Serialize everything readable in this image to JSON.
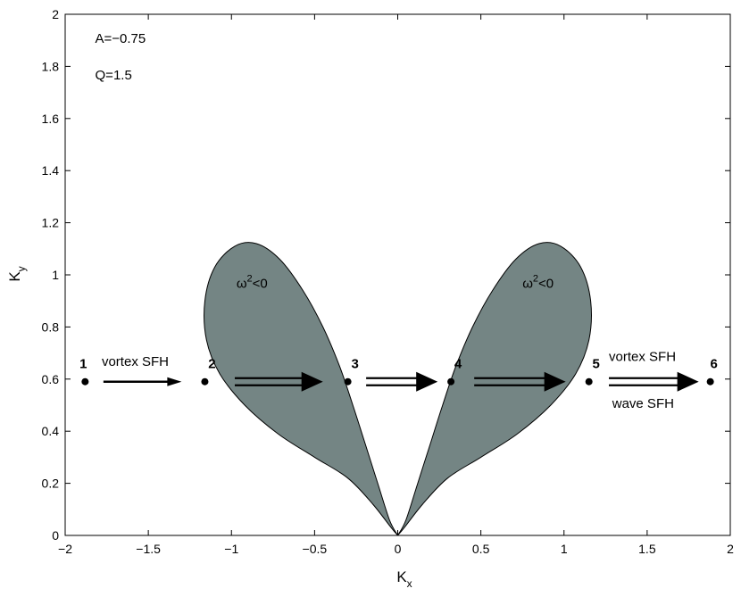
{
  "chart_data": {
    "type": "area",
    "title": "",
    "xlabel": "K",
    "xlabel_sub": "x",
    "ylabel": "K",
    "ylabel_sub": "y",
    "xlim": [
      -2,
      2
    ],
    "ylim": [
      0,
      2
    ],
    "xticks": [
      -2,
      -1.5,
      -1,
      -0.5,
      0,
      0.5,
      1,
      1.5,
      2
    ],
    "xtick_labels": [
      "−2",
      "−1.5",
      "−1",
      "−0.5",
      "0",
      "0.5",
      "1",
      "1.5",
      "2"
    ],
    "yticks": [
      0,
      0.2,
      0.4,
      0.6,
      0.8,
      1,
      1.2,
      1.4,
      1.6,
      1.8,
      2
    ],
    "ytick_labels": [
      "0",
      "0.2",
      "0.4",
      "0.6",
      "0.8",
      "1",
      "1.2",
      "1.4",
      "1.6",
      "1.8",
      "2"
    ],
    "grid": false,
    "fill_color": "#748584",
    "regions": [
      {
        "label_base": "ω",
        "label_sup": "2",
        "label_rest": "<0",
        "label_pos": [
          -0.97,
          0.95
        ],
        "outline": [
          [
            0,
            0
          ],
          [
            -0.04,
            0.03
          ],
          [
            -0.15,
            0.12
          ],
          [
            -0.3,
            0.22
          ],
          [
            -0.5,
            0.3
          ],
          [
            -0.72,
            0.39
          ],
          [
            -0.92,
            0.5
          ],
          [
            -1.07,
            0.62
          ],
          [
            -1.15,
            0.75
          ],
          [
            -1.16,
            0.9
          ],
          [
            -1.1,
            1.03
          ],
          [
            -0.98,
            1.11
          ],
          [
            -0.85,
            1.12
          ],
          [
            -0.71,
            1.06
          ],
          [
            -0.57,
            0.94
          ],
          [
            -0.45,
            0.8
          ],
          [
            -0.35,
            0.65
          ],
          [
            -0.27,
            0.5
          ],
          [
            -0.2,
            0.36
          ],
          [
            -0.12,
            0.2
          ],
          [
            -0.05,
            0.06
          ],
          [
            0,
            0
          ]
        ]
      },
      {
        "label_base": "ω",
        "label_sup": "2",
        "label_rest": "<0",
        "label_pos": [
          0.75,
          0.95
        ],
        "outline": [
          [
            0,
            0
          ],
          [
            0.04,
            0.03
          ],
          [
            0.15,
            0.12
          ],
          [
            0.3,
            0.22
          ],
          [
            0.5,
            0.3
          ],
          [
            0.72,
            0.39
          ],
          [
            0.92,
            0.5
          ],
          [
            1.07,
            0.62
          ],
          [
            1.15,
            0.75
          ],
          [
            1.16,
            0.9
          ],
          [
            1.1,
            1.03
          ],
          [
            0.98,
            1.11
          ],
          [
            0.85,
            1.12
          ],
          [
            0.71,
            1.06
          ],
          [
            0.57,
            0.94
          ],
          [
            0.45,
            0.8
          ],
          [
            0.35,
            0.65
          ],
          [
            0.27,
            0.5
          ],
          [
            0.2,
            0.36
          ],
          [
            0.12,
            0.2
          ],
          [
            0.05,
            0.06
          ],
          [
            0,
            0
          ]
        ]
      }
    ],
    "points": [
      {
        "label": "1",
        "x": -1.88,
        "y": 0.59
      },
      {
        "label": "2",
        "x": -1.16,
        "y": 0.59
      },
      {
        "label": "3",
        "x": -0.3,
        "y": 0.59
      },
      {
        "label": "4",
        "x": 0.32,
        "y": 0.59
      },
      {
        "label": "5",
        "x": 1.15,
        "y": 0.59
      },
      {
        "label": "6",
        "x": 1.88,
        "y": 0.59
      }
    ],
    "arrows": [
      {
        "x1": -1.77,
        "x2": -1.3,
        "y": 0.59,
        "style": "single"
      },
      {
        "x1": -0.98,
        "x2": -0.45,
        "y": 0.59,
        "style": "double"
      },
      {
        "x1": -0.19,
        "x2": 0.24,
        "y": 0.59,
        "style": "double"
      },
      {
        "x1": 0.46,
        "x2": 1.01,
        "y": 0.59,
        "style": "double"
      },
      {
        "x1": 1.27,
        "x2": 1.81,
        "y": 0.59,
        "style": "double"
      }
    ],
    "annotations": [
      {
        "text": "A=−0.75",
        "x": -1.82,
        "y": 1.89
      },
      {
        "text": "Q=1.5",
        "x": -1.82,
        "y": 1.75
      },
      {
        "text": "vortex SFH",
        "x": -1.78,
        "y": 0.65
      },
      {
        "text": "vortex SFH",
        "x": 1.27,
        "y": 0.67
      },
      {
        "text": "wave SFH",
        "x": 1.29,
        "y": 0.49
      }
    ]
  }
}
